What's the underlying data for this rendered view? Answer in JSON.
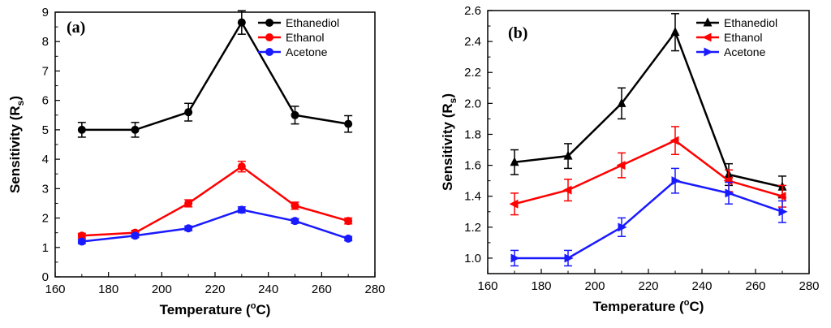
{
  "chart_data": [
    {
      "type": "line",
      "panel_label": "(a)",
      "xlabel": "Temperature (°C)",
      "ylabel": "Sensitivity (Rs)",
      "xlim": [
        160,
        280
      ],
      "ylim": [
        0,
        9
      ],
      "xticks": [
        160,
        180,
        200,
        220,
        240,
        260,
        280
      ],
      "yticks": [
        0,
        1,
        2,
        3,
        4,
        5,
        6,
        7,
        8,
        9
      ],
      "legend_position": "top-right",
      "x": [
        170,
        190,
        210,
        230,
        250,
        270
      ],
      "series": [
        {
          "name": "Ethanediol",
          "color": "#000000",
          "marker": "circle",
          "values": [
            5.0,
            5.0,
            5.6,
            8.65,
            5.5,
            5.2
          ],
          "errors": [
            0.25,
            0.25,
            0.3,
            0.4,
            0.3,
            0.28
          ]
        },
        {
          "name": "Ethanol",
          "color": "#ff0000",
          "marker": "circle",
          "values": [
            1.4,
            1.5,
            2.5,
            3.75,
            2.42,
            1.9
          ],
          "errors": [
            0.08,
            0.08,
            0.12,
            0.18,
            0.12,
            0.1
          ]
        },
        {
          "name": "Acetone",
          "color": "#1a1aff",
          "marker": "circle",
          "values": [
            1.2,
            1.4,
            1.65,
            2.28,
            1.9,
            1.3
          ],
          "errors": [
            0.07,
            0.07,
            0.08,
            0.1,
            0.08,
            0.07
          ]
        }
      ]
    },
    {
      "type": "line",
      "panel_label": "(b)",
      "xlabel": "Temperature (°C)",
      "ylabel": "Sensitivity (Rs)",
      "xlim": [
        160,
        280
      ],
      "ylim": [
        0.9,
        2.6
      ],
      "xticks": [
        160,
        180,
        200,
        220,
        240,
        260,
        280
      ],
      "yticks": [
        1.0,
        1.2,
        1.4,
        1.6,
        1.8,
        2.0,
        2.2,
        2.4,
        2.6
      ],
      "legend_position": "top-right",
      "x": [
        170,
        190,
        210,
        230,
        250,
        270
      ],
      "series": [
        {
          "name": "Ethanediol",
          "color": "#000000",
          "marker": "triangle-up",
          "values": [
            1.62,
            1.66,
            2.0,
            2.46,
            1.54,
            1.46
          ],
          "errors": [
            0.08,
            0.08,
            0.1,
            0.12,
            0.07,
            0.07
          ]
        },
        {
          "name": "Ethanol",
          "color": "#ff0000",
          "marker": "triangle-left",
          "values": [
            1.35,
            1.44,
            1.6,
            1.76,
            1.5,
            1.4
          ],
          "errors": [
            0.07,
            0.07,
            0.08,
            0.09,
            0.07,
            0.07
          ]
        },
        {
          "name": "Acetone",
          "color": "#1a1aff",
          "marker": "triangle-right",
          "values": [
            1.0,
            1.0,
            1.2,
            1.5,
            1.42,
            1.3
          ],
          "errors": [
            0.05,
            0.05,
            0.06,
            0.08,
            0.07,
            0.07
          ]
        }
      ]
    }
  ]
}
